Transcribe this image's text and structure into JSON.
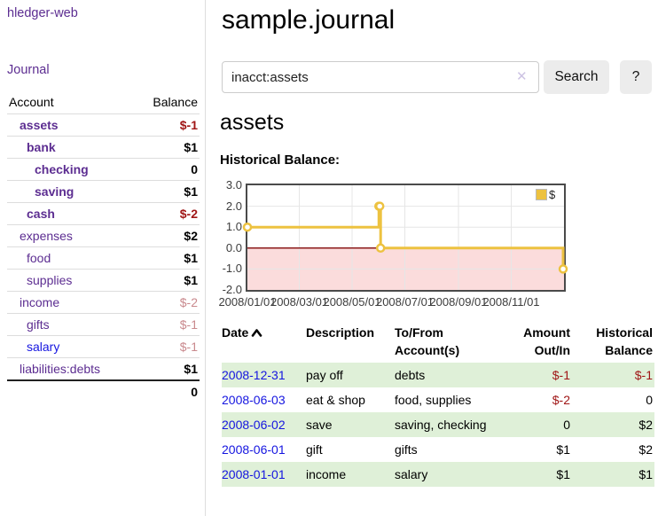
{
  "sidebar": {
    "brand": "hledger-web",
    "nav": {
      "journal": "Journal"
    },
    "accounts_table": {
      "col_account": "Account",
      "col_balance": "Balance",
      "rows": [
        {
          "account": "assets",
          "balance": "$-1"
        },
        {
          "account": "bank",
          "balance": "$1"
        },
        {
          "account": "checking",
          "balance": "0"
        },
        {
          "account": "saving",
          "balance": "$1"
        },
        {
          "account": "cash",
          "balance": "$-2"
        },
        {
          "account": "expenses",
          "balance": "$2"
        },
        {
          "account": "food",
          "balance": "$1"
        },
        {
          "account": "supplies",
          "balance": "$1"
        },
        {
          "account": "income",
          "balance": "$-2"
        },
        {
          "account": "gifts",
          "balance": "$-1"
        },
        {
          "account": "salary",
          "balance": "$-1"
        },
        {
          "account": "liabilities:debts",
          "balance": "$1"
        }
      ],
      "total": "0"
    }
  },
  "main": {
    "title": "sample.journal",
    "search": {
      "value": "inacct:assets",
      "clear_icon": "✕",
      "search_button": "Search",
      "help_button": "?"
    },
    "account_heading": "assets",
    "section_label": "Historical Balance:"
  },
  "chart_data": {
    "type": "line",
    "step": true,
    "title": "Historical Balance:",
    "legend": [
      {
        "label": "$",
        "color": "#edc240"
      }
    ],
    "legend_position": "top-right",
    "series": [
      {
        "name": "$",
        "color": "#edc240",
        "points": [
          {
            "date": "2008-01-01",
            "day": 0,
            "value": 1
          },
          {
            "date": "2008-06-01",
            "day": 152,
            "value": 2
          },
          {
            "date": "2008-06-02",
            "day": 153,
            "value": 2
          },
          {
            "date": "2008-06-03",
            "day": 154,
            "value": 0
          },
          {
            "date": "2008-12-31",
            "day": 365,
            "value": -1
          }
        ]
      }
    ],
    "ylim": [
      -2,
      3
    ],
    "xlim_days": [
      0,
      366
    ],
    "y_ticks": [
      {
        "label": "3.0",
        "value": 3
      },
      {
        "label": "2.0",
        "value": 2
      },
      {
        "label": "1.0",
        "value": 1
      },
      {
        "label": "0.0",
        "value": 0
      },
      {
        "label": "-1.0",
        "value": -1
      },
      {
        "label": "-2.0",
        "value": -2
      }
    ],
    "x_ticks": [
      {
        "label": "2008/01/01",
        "day": 0
      },
      {
        "label": "2008/03/01",
        "day": 60
      },
      {
        "label": "2008/05/01",
        "day": 121
      },
      {
        "label": "2008/07/01",
        "day": 182
      },
      {
        "label": "2008/09/01",
        "day": 244
      },
      {
        "label": "2008/11/01",
        "day": 305
      }
    ],
    "x_gridline_days": [
      60,
      121,
      182,
      244,
      305
    ],
    "grid_on": true,
    "grid_color": "#e6e6e6",
    "zero_line_color": "#8b1a1a",
    "negative_region": {
      "from": -2,
      "to": 0,
      "color": "#fbdcdc"
    }
  },
  "register": {
    "headers": {
      "date": "Date",
      "description": "Description",
      "accounts": "To/From Account(s)",
      "amount": "Amount Out/In",
      "balance": "Historical Balance"
    },
    "rows": [
      {
        "date": "2008-12-31",
        "description": "pay off",
        "accounts": "debts",
        "amount": "$-1",
        "balance": "$-1"
      },
      {
        "date": "2008-06-03",
        "description": "eat & shop",
        "accounts": "food, supplies",
        "amount": "$-2",
        "balance": "0"
      },
      {
        "date": "2008-06-02",
        "description": "save",
        "accounts": "saving, checking",
        "amount": "0",
        "balance": "$2"
      },
      {
        "date": "2008-06-01",
        "description": "gift",
        "accounts": "gifts",
        "amount": "$1",
        "balance": "$2"
      },
      {
        "date": "2008-01-01",
        "description": "income",
        "accounts": "salary",
        "amount": "$1",
        "balance": "$1"
      }
    ]
  }
}
